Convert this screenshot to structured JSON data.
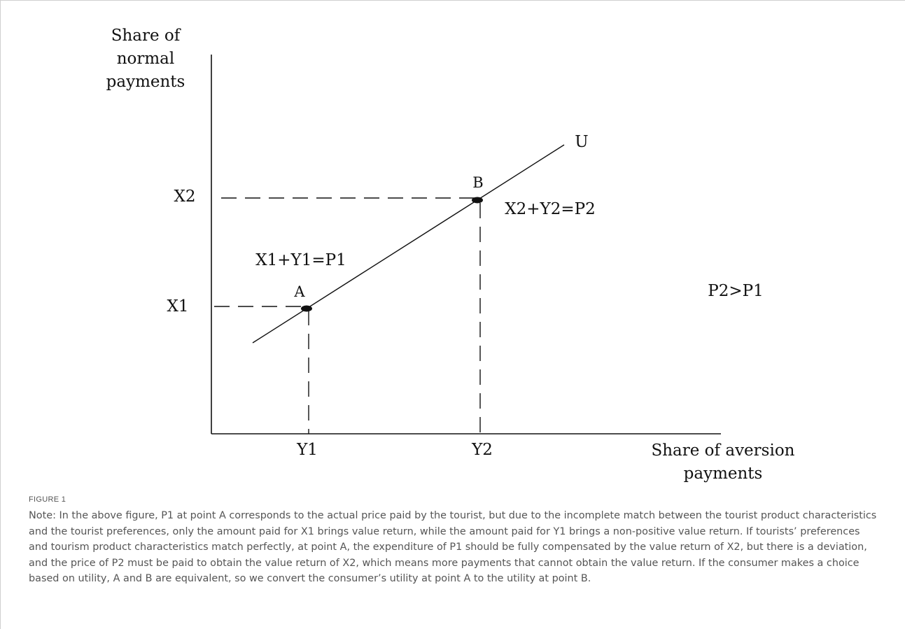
{
  "diagram": {
    "y_axis_label": [
      "Share of",
      "normal",
      "payments"
    ],
    "x_axis_label": [
      "Share of aversion",
      "payments"
    ],
    "y_ticks": [
      "X2",
      "X1"
    ],
    "x_ticks": [
      "Y1",
      "Y2"
    ],
    "curve_label": "U",
    "points": [
      "A",
      "B"
    ],
    "annotations": {
      "eq_a": "X1+Y1=P1",
      "eq_b": "X2+Y2=P2",
      "inequality": "P2>P1"
    }
  },
  "caption": {
    "label": "FIGURE 1",
    "text": "Note: In the above figure, P1 at point A corresponds to the actual price paid by the tourist, but due to the incomplete match between the tourist product characteristics and the tourist preferences, only the amount paid for X1 brings value return, while the amount paid for Y1 brings a non-positive value return. If tourists’ preferences and tourism product characteristics match perfectly, at point A, the expenditure of P1 should be fully compensated by the value return of X2, but there is a deviation, and the price of P2 must be paid to obtain the value return of X2, which means more payments that cannot obtain the value return. If the consumer makes a choice based on utility, A and B are equivalent, so we convert the consumer’s utility at point A to the utility at point B."
  }
}
